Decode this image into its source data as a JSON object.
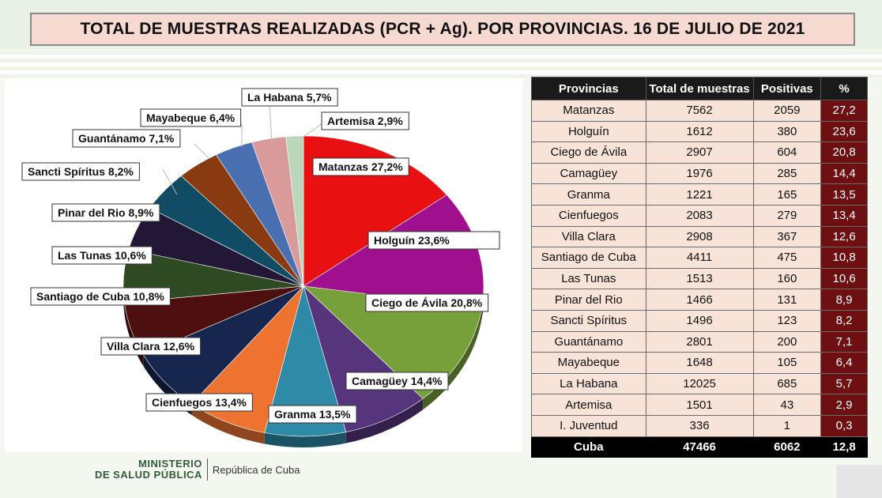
{
  "title": "TOTAL DE MUESTRAS REALIZADAS (PCR + Ag). POR PROVINCIAS. 16 DE JULIO DE 2021",
  "chart_data": {
    "type": "pie",
    "slices": [
      {
        "label": "Matanzas 27,2%",
        "value": 27.2,
        "color": "#e81010"
      },
      {
        "label": "Holguín  23,6%",
        "value": 23.6,
        "color": "#a0108e"
      },
      {
        "label": "Ciego de Ávila 20,8%",
        "value": 20.8,
        "color": "#77a03a"
      },
      {
        "label": "Camagüey 14,4%",
        "value": 14.4,
        "color": "#56357d"
      },
      {
        "label": "Granma 13,5%",
        "value": 13.5,
        "color": "#2e8aa6"
      },
      {
        "label": "Cienfuegos 13,4%",
        "value": 13.4,
        "color": "#ee7330"
      },
      {
        "label": "Villa Clara 12,6%",
        "value": 12.6,
        "color": "#17264f"
      },
      {
        "label": "Santiago de Cuba 10,8%",
        "value": 10.8,
        "color": "#4d0f10"
      },
      {
        "label": "Las Tunas 10,6%",
        "value": 10.6,
        "color": "#2e4a22"
      },
      {
        "label": "Pinar del Rio 8,9%",
        "value": 8.9,
        "color": "#221736"
      },
      {
        "label": "Sancti Spíritus 8,2%",
        "value": 8.2,
        "color": "#104c63"
      },
      {
        "label": "Guantánamo 7,1%",
        "value": 7.1,
        "color": "#8a3a10"
      },
      {
        "label": "Mayabeque 6,4%",
        "value": 6.4,
        "color": "#4a6fb0"
      },
      {
        "label": "La Habana 5,7%",
        "value": 5.7,
        "color": "#d99a9a"
      },
      {
        "label": "Artemisa 2,9%",
        "value": 2.9,
        "color": "#bcd6bc"
      }
    ]
  },
  "table": {
    "headers": [
      "Provincias",
      "Total de muestras",
      "Positivas",
      "%"
    ],
    "rows": [
      [
        "Matanzas",
        "7562",
        "2059",
        "27,2"
      ],
      [
        "Holguín",
        "1612",
        "380",
        "23,6"
      ],
      [
        "Ciego de Ávila",
        "2907",
        "604",
        "20,8"
      ],
      [
        "Camagüey",
        "1976",
        "285",
        "14,4"
      ],
      [
        "Granma",
        "1221",
        "165",
        "13,5"
      ],
      [
        "Cienfuegos",
        "2083",
        "279",
        "13,4"
      ],
      [
        "Villa Clara",
        "2908",
        "367",
        "12,6"
      ],
      [
        "Santiago de Cuba",
        "4411",
        "475",
        "10,8"
      ],
      [
        "Las Tunas",
        "1513",
        "160",
        "10,6"
      ],
      [
        "Pinar del Rio",
        "1466",
        "131",
        "8,9"
      ],
      [
        "Sancti Spíritus",
        "1496",
        "123",
        "8,2"
      ],
      [
        "Guantánamo",
        "2801",
        "200",
        "7,1"
      ],
      [
        "Mayabeque",
        "1648",
        "105",
        "6,4"
      ],
      [
        "La Habana",
        "12025",
        "685",
        "5,7"
      ],
      [
        "Artemisa",
        "1501",
        "43",
        "2,9"
      ],
      [
        "I.  Juventud",
        "336",
        "1",
        "0,3"
      ]
    ],
    "total": [
      "Cuba",
      "47466",
      "6062",
      "12,8"
    ]
  },
  "footer": {
    "ministry_line1": "MINISTERIO",
    "ministry_line2": "DE SALUD PÚBLICA",
    "republic": "República de Cuba"
  }
}
